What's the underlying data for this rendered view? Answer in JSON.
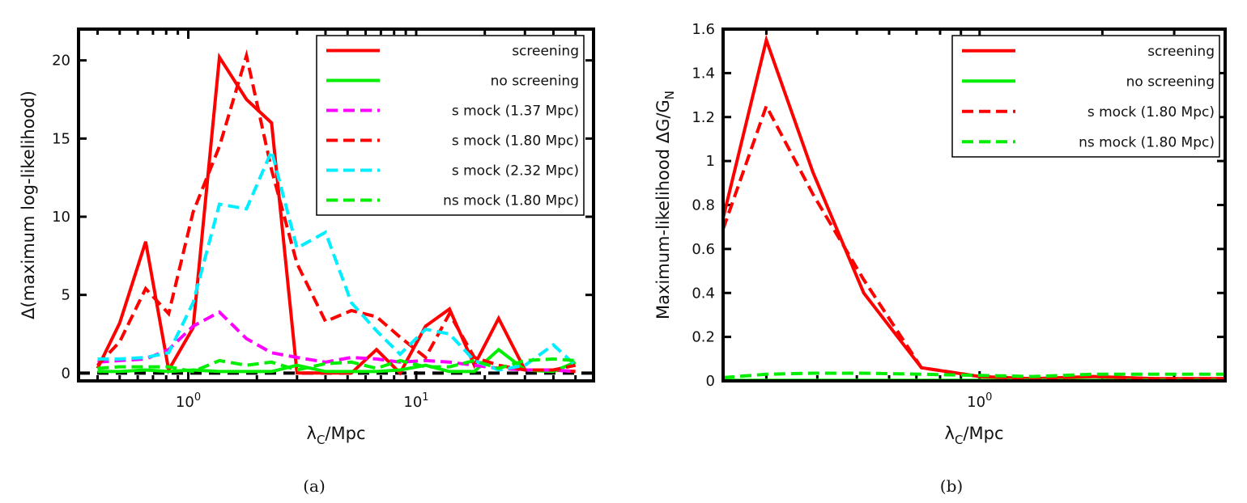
{
  "chart_data": [
    {
      "type": "line",
      "xscale": "log",
      "xlim": [
        0.33,
        60
      ],
      "ylim": [
        -0.5,
        22
      ],
      "x_ticks": [
        {
          "value": 1,
          "base": "10",
          "exp": "0"
        },
        {
          "value": 10,
          "base": "10",
          "exp": "1"
        }
      ],
      "y_ticks": [
        {
          "value": 0,
          "label": "0"
        },
        {
          "value": 5,
          "label": "5"
        },
        {
          "value": 10,
          "label": "10"
        },
        {
          "value": 15,
          "label": "15"
        },
        {
          "value": 20,
          "label": "20"
        }
      ],
      "xlabel": {
        "main": "λ",
        "sub": "C",
        "rest": "/Mpc"
      },
      "ylabel": "Δ(maximum log-likelihood)",
      "caption": "(a)",
      "legend_position": "top-right",
      "reference_line": {
        "y": 0,
        "style": "dashed",
        "color": "#000000"
      },
      "series": [
        {
          "name": "screening",
          "color": "#ff0000",
          "dash": false,
          "x": [
            0.4,
            0.5,
            0.65,
            0.82,
            1.05,
            1.37,
            1.8,
            2.32,
            3.0,
            4.0,
            5.2,
            6.7,
            8.5,
            11,
            14,
            18,
            23,
            30,
            40,
            50
          ],
          "y": [
            0.3,
            3.2,
            8.4,
            0.2,
            2.9,
            20.2,
            17.5,
            16,
            0,
            0,
            0,
            1.5,
            0,
            3,
            4.1,
            0.5,
            3.5,
            0.2,
            0.2,
            0.1
          ]
        },
        {
          "name": "no screening",
          "color": "#00ee00",
          "dash": false,
          "x": [
            0.4,
            0.5,
            0.65,
            0.82,
            1.05,
            1.37,
            1.8,
            2.32,
            3.0,
            4.0,
            5.2,
            6.7,
            8.5,
            11,
            14,
            18,
            23,
            30,
            40,
            50
          ],
          "y": [
            0.1,
            0.1,
            0.2,
            0.1,
            0.2,
            0.1,
            0.1,
            0.1,
            0.5,
            0.1,
            0.1,
            0.1,
            0.2,
            0.5,
            0.1,
            0.1,
            1.5,
            0.2,
            0.1,
            0.7
          ]
        },
        {
          "name": "s mock (1.37 Mpc)",
          "color": "#ff00ff",
          "dash": true,
          "x": [
            0.4,
            0.5,
            0.65,
            0.82,
            1.05,
            1.37,
            1.8,
            2.32,
            3.0,
            4.0,
            5.2,
            6.7,
            8.5,
            11,
            14,
            18,
            23,
            30,
            40,
            50
          ],
          "y": [
            0.7,
            0.8,
            0.9,
            1.5,
            3.0,
            3.9,
            2.2,
            1.3,
            1.0,
            0.7,
            1.0,
            0.9,
            0.7,
            0.8,
            0.7,
            0.5,
            0.3,
            0.2,
            0.2,
            0.1
          ]
        },
        {
          "name": "s mock (1.80 Mpc)",
          "color": "#ff0000",
          "dash": true,
          "x": [
            0.4,
            0.5,
            0.65,
            0.82,
            1.05,
            1.37,
            1.8,
            2.32,
            3.0,
            4.0,
            5.2,
            6.7,
            8.5,
            11,
            14,
            18,
            23,
            30,
            40,
            50
          ],
          "y": [
            0.5,
            2.0,
            5.4,
            3.8,
            10.3,
            14.5,
            20.3,
            13.0,
            7.0,
            3.3,
            4.0,
            3.6,
            2.3,
            1.0,
            3.8,
            1.0,
            0.5,
            0.2,
            0.2,
            0.5
          ]
        },
        {
          "name": "s mock (2.32 Mpc)",
          "color": "#00eeff",
          "dash": true,
          "x": [
            0.4,
            0.5,
            0.65,
            0.82,
            1.05,
            1.37,
            1.8,
            2.32,
            3.0,
            4.0,
            5.2,
            6.7,
            8.5,
            11,
            14,
            18,
            23,
            30,
            40,
            50
          ],
          "y": [
            0.9,
            0.9,
            1.0,
            1.3,
            4.5,
            10.8,
            10.5,
            14.2,
            8.0,
            9.0,
            4.5,
            2.7,
            1.2,
            2.8,
            2.5,
            0.8,
            0.2,
            0.5,
            1.8,
            0.5
          ]
        },
        {
          "name": "ns mock (1.80 Mpc)",
          "color": "#00ee00",
          "dash": true,
          "x": [
            0.4,
            0.5,
            0.65,
            0.82,
            1.05,
            1.37,
            1.8,
            2.32,
            3.0,
            4.0,
            5.2,
            6.7,
            8.5,
            11,
            14,
            18,
            23,
            30,
            40,
            50
          ],
          "y": [
            0.3,
            0.4,
            0.4,
            0.4,
            0.1,
            0.8,
            0.5,
            0.7,
            0.2,
            0.6,
            0.7,
            0.3,
            0.8,
            0.4,
            0.4,
            0.8,
            0.3,
            0.8,
            0.9,
            0.8
          ]
        }
      ]
    },
    {
      "type": "line",
      "xscale": "log",
      "xlim": [
        0.235,
        4.0
      ],
      "ylim": [
        0,
        1.6
      ],
      "x_ticks": [
        {
          "value": 1,
          "base": "10",
          "exp": "0"
        }
      ],
      "y_ticks": [
        {
          "value": 0,
          "label": "0"
        },
        {
          "value": 0.2,
          "label": "0.2"
        },
        {
          "value": 0.4,
          "label": "0.4"
        },
        {
          "value": 0.6,
          "label": "0.6"
        },
        {
          "value": 0.8,
          "label": "0.8"
        },
        {
          "value": 1.0,
          "label": "1"
        },
        {
          "value": 1.2,
          "label": "1.2"
        },
        {
          "value": 1.4,
          "label": "1.4"
        },
        {
          "value": 1.6,
          "label": "1.6"
        }
      ],
      "xlabel": {
        "main": "λ",
        "sub": "C",
        "rest": "/Mpc"
      },
      "ylabel": {
        "main": "Maximum-likelihood ΔG/G",
        "sub": "N"
      },
      "caption": "(b)",
      "legend_position": "top-right",
      "series": [
        {
          "name": "screening",
          "color": "#ff0000",
          "dash": false,
          "x": [
            0.235,
            0.3,
            0.39,
            0.52,
            0.72,
            1.0,
            1.35,
            1.9,
            2.7,
            4.0
          ],
          "y": [
            0.74,
            1.55,
            0.95,
            0.4,
            0.06,
            0.02,
            0.01,
            0.02,
            0.01,
            0.01
          ]
        },
        {
          "name": "no screening",
          "color": "#00ee00",
          "dash": false,
          "x": [
            0.235,
            0.3,
            0.39,
            0.52,
            0.72,
            1.0,
            1.35,
            1.9,
            2.7,
            4.0
          ],
          "y": [
            0.003,
            0.003,
            0.003,
            0.003,
            0.003,
            0.003,
            0.003,
            0.003,
            0.003,
            0.003
          ]
        },
        {
          "name": "s mock (1.80 Mpc)",
          "color": "#ff0000",
          "dash": true,
          "x": [
            0.235,
            0.3,
            0.39,
            0.52,
            0.72,
            1.0,
            1.35,
            1.9,
            2.7,
            4.0
          ],
          "y": [
            0.69,
            1.25,
            0.85,
            0.46,
            0.06,
            0.02,
            0.01,
            0.02,
            0.01,
            0.01
          ]
        },
        {
          "name": "ns mock (1.80 Mpc)",
          "color": "#00ee00",
          "dash": true,
          "x": [
            0.235,
            0.3,
            0.39,
            0.52,
            0.72,
            1.0,
            1.35,
            1.9,
            2.7,
            4.0
          ],
          "y": [
            0.015,
            0.03,
            0.035,
            0.035,
            0.03,
            0.025,
            0.02,
            0.03,
            0.03,
            0.03
          ]
        }
      ]
    }
  ]
}
